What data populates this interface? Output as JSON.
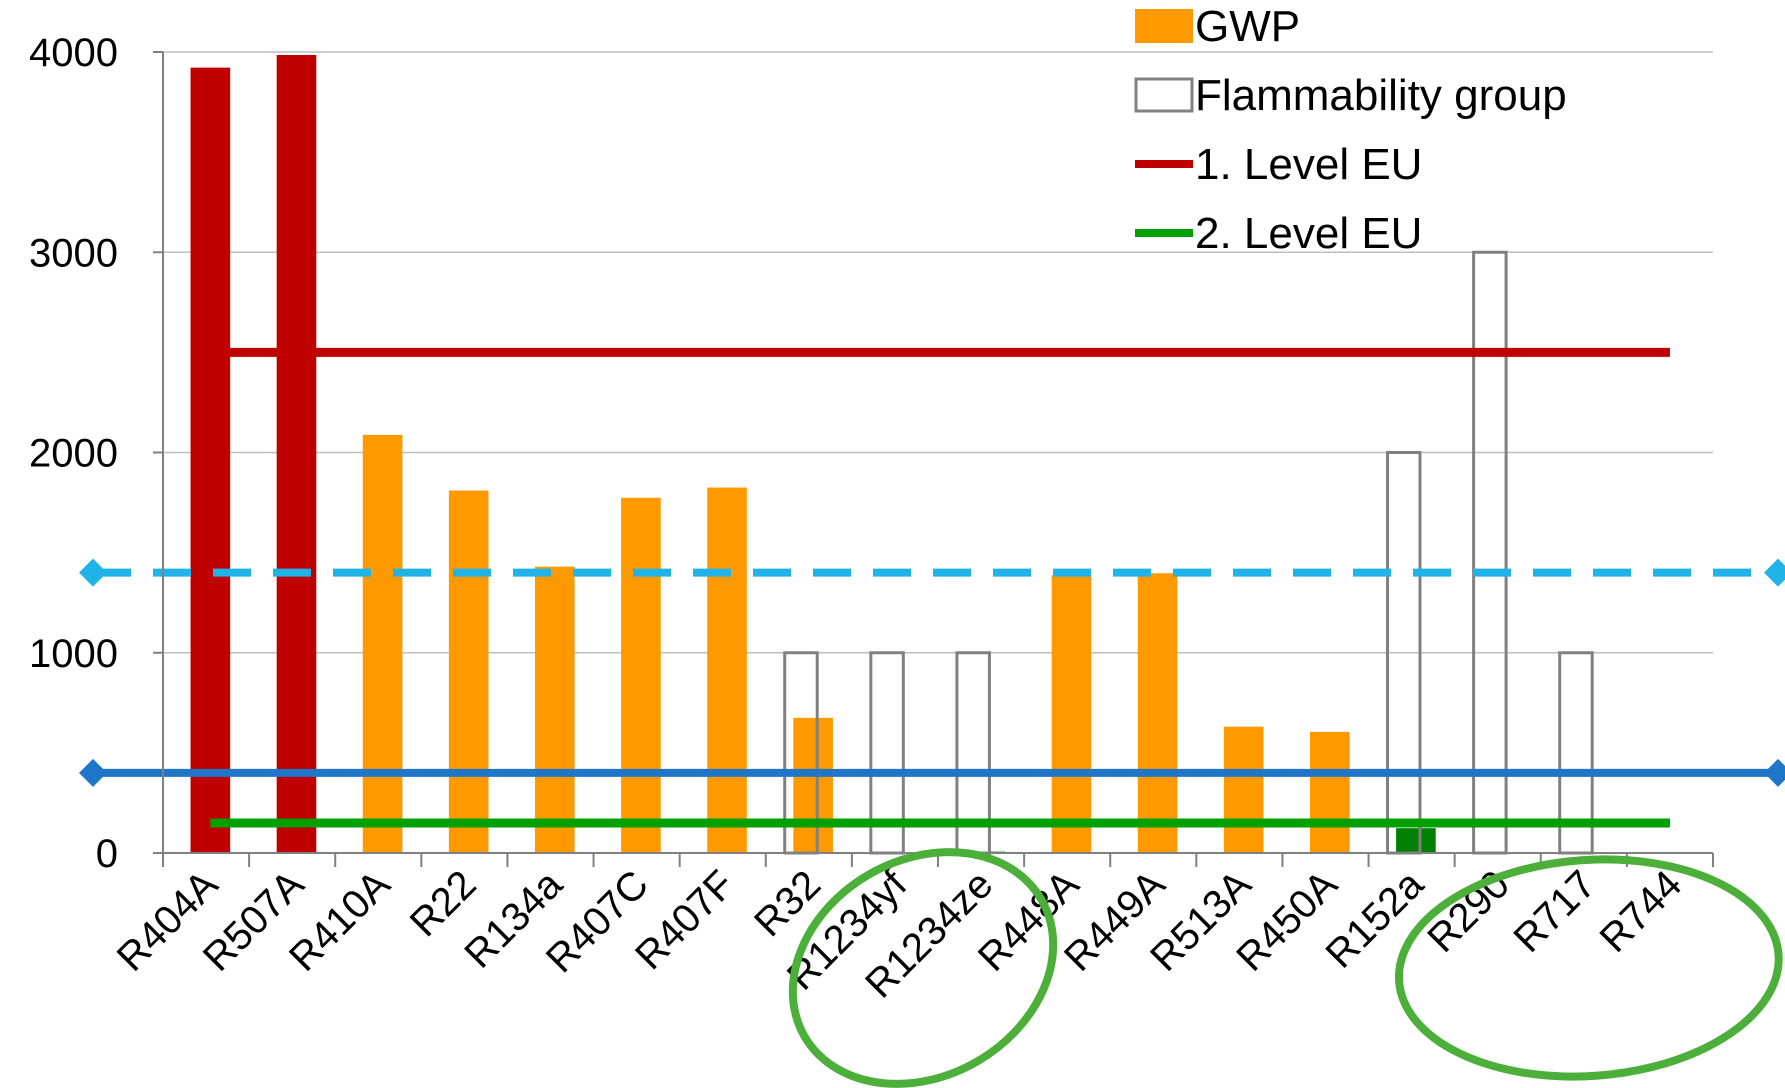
{
  "chart_data": {
    "type": "bar",
    "categories": [
      "R404A",
      "R507A",
      "R410A",
      "R22",
      "R134a",
      "R407C",
      "R407F",
      "R32",
      "R1234yf",
      "R1234ze",
      "R448A",
      "R449A",
      "R513A",
      "R450A",
      "R152a",
      "R290",
      "R717",
      "R744"
    ],
    "ylim": [
      0,
      4000
    ],
    "y_ticks": [
      0,
      1000,
      2000,
      3000,
      4000
    ],
    "grid": true,
    "legend_position": "top-right",
    "series": [
      {
        "name": "GWP",
        "color": "#FF9900",
        "values": [
          3922,
          3985,
          2088,
          1810,
          1430,
          1774,
          1825,
          675,
          4,
          7,
          1387,
          1397,
          631,
          605,
          124,
          3,
          0,
          1
        ],
        "point_colors": [
          "#C00000",
          "#C00000",
          "#FF9900",
          "#FF9900",
          "#FF9900",
          "#FF9900",
          "#FF9900",
          "#FF9900",
          "#008000",
          "#008000",
          "#FF9900",
          "#FF9900",
          "#FF9900",
          "#FF9900",
          "#008000",
          "#008000",
          "#008000",
          "#008000"
        ]
      },
      {
        "name": "Flammability group",
        "style": "outline",
        "color": "#808080",
        "values": [
          0,
          0,
          0,
          0,
          0,
          0,
          0,
          1000,
          1000,
          1000,
          0,
          0,
          0,
          0,
          2000,
          3000,
          1000,
          0
        ]
      }
    ],
    "reference_lines": [
      {
        "name": "1. Level EU",
        "value": 2500,
        "color": "#C00000",
        "in_legend": true
      },
      {
        "name": "2. Level EU",
        "value": 150,
        "color": "#00A000",
        "in_legend": true
      },
      {
        "value": 1400,
        "color": "#1FB3E8",
        "style": "dashed",
        "in_legend": false
      },
      {
        "value": 400,
        "color": "#1F75C8",
        "style": "solid",
        "in_legend": false
      }
    ],
    "highlight_groups": [
      {
        "categories": [
          "R1234yf",
          "R1234ze"
        ],
        "color": "#4CAF3A"
      },
      {
        "categories": [
          "R290",
          "R717",
          "R744"
        ],
        "color": "#4CAF3A"
      }
    ]
  }
}
